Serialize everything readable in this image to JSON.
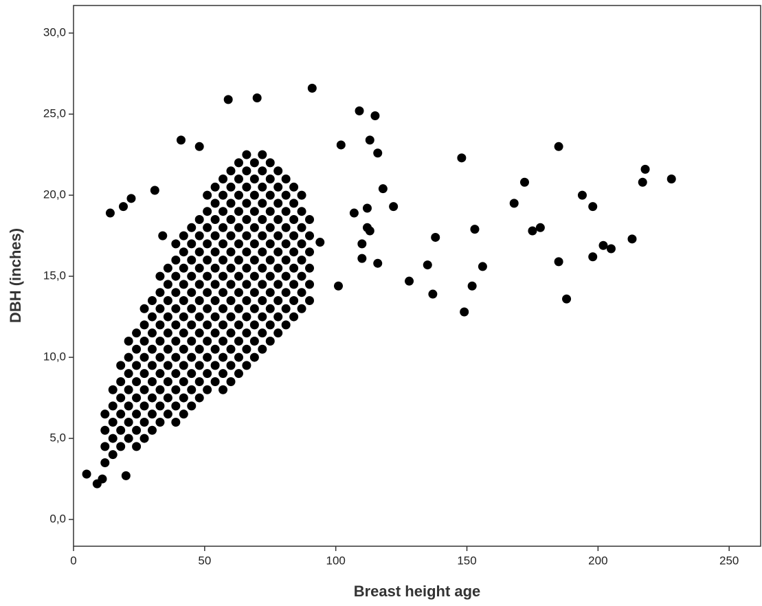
{
  "chart_data": {
    "type": "scatter",
    "xlabel": "Breast height age",
    "ylabel": "DBH (inches)",
    "color": "#000000",
    "xlim": [
      0,
      262
    ],
    "ylim": [
      -1.65,
      31.7
    ],
    "xticks": [
      0,
      50,
      100,
      150,
      200,
      250
    ],
    "yticks": [
      {
        "value": 0,
        "label": "0,0"
      },
      {
        "value": 5,
        "label": "5,0"
      },
      {
        "value": 10,
        "label": "10,0"
      },
      {
        "value": 15,
        "label": "15,0"
      },
      {
        "value": 20,
        "label": "20,0"
      },
      {
        "value": 25,
        "label": "25,0"
      },
      {
        "value": 30,
        "label": "30,0"
      }
    ],
    "x": [
      12,
      12,
      12,
      12,
      15,
      15,
      15,
      15,
      15,
      18,
      18,
      18,
      18,
      18,
      18,
      21,
      21,
      21,
      21,
      21,
      21,
      21,
      24,
      24,
      24,
      24,
      24,
      24,
      24,
      24,
      27,
      27,
      27,
      27,
      27,
      27,
      27,
      27,
      27,
      30,
      30,
      30,
      30,
      30,
      30,
      30,
      30,
      30,
      33,
      33,
      33,
      33,
      33,
      33,
      33,
      33,
      33,
      33,
      36,
      36,
      36,
      36,
      36,
      36,
      36,
      36,
      36,
      36,
      39,
      39,
      39,
      39,
      39,
      39,
      39,
      39,
      39,
      39,
      39,
      39,
      42,
      42,
      42,
      42,
      42,
      42,
      42,
      42,
      42,
      42,
      42,
      42,
      45,
      45,
      45,
      45,
      45,
      45,
      45,
      45,
      45,
      45,
      45,
      45,
      48,
      48,
      48,
      48,
      48,
      48,
      48,
      48,
      48,
      48,
      48,
      48,
      51,
      51,
      51,
      51,
      51,
      51,
      51,
      51,
      51,
      51,
      51,
      51,
      51,
      54,
      54,
      54,
      54,
      54,
      54,
      54,
      54,
      54,
      54,
      54,
      54,
      54,
      57,
      57,
      57,
      57,
      57,
      57,
      57,
      57,
      57,
      57,
      57,
      57,
      57,
      57,
      60,
      60,
      60,
      60,
      60,
      60,
      60,
      60,
      60,
      60,
      60,
      60,
      60,
      60,
      63,
      63,
      63,
      63,
      63,
      63,
      63,
      63,
      63,
      63,
      63,
      63,
      63,
      63,
      66,
      66,
      66,
      66,
      66,
      66,
      66,
      66,
      66,
      66,
      66,
      66,
      66,
      66,
      69,
      69,
      69,
      69,
      69,
      69,
      69,
      69,
      69,
      69,
      69,
      69,
      69,
      72,
      72,
      72,
      72,
      72,
      72,
      72,
      72,
      72,
      72,
      72,
      72,
      72,
      75,
      75,
      75,
      75,
      75,
      75,
      75,
      75,
      75,
      75,
      75,
      75,
      78,
      78,
      78,
      78,
      78,
      78,
      78,
      78,
      78,
      78,
      78,
      81,
      81,
      81,
      81,
      81,
      81,
      81,
      81,
      81,
      81,
      84,
      84,
      84,
      84,
      84,
      84,
      84,
      84,
      84,
      87,
      87,
      87,
      87,
      87,
      87,
      87,
      87,
      90,
      90,
      90,
      90,
      90,
      90,
      5,
      9,
      11,
      20,
      14,
      19,
      22,
      31,
      34,
      41,
      48,
      59,
      70,
      91,
      109,
      115,
      102,
      113,
      116,
      118,
      122,
      112,
      107,
      112,
      110,
      113,
      110,
      116,
      101,
      94,
      128,
      135,
      138,
      137,
      148,
      153,
      149,
      152,
      156,
      168,
      172,
      175,
      178,
      185,
      185,
      188,
      194,
      198,
      198,
      202,
      205,
      213,
      217,
      218,
      228
    ],
    "values": [
      3.5,
      4.5,
      5.5,
      6.5,
      4,
      5,
      6,
      7,
      8,
      4.5,
      5.5,
      6.5,
      7.5,
      8.5,
      9.5,
      5,
      6,
      7,
      8,
      9,
      10,
      11,
      4.5,
      5.5,
      6.5,
      7.5,
      8.5,
      9.5,
      10.5,
      11.5,
      5,
      6,
      7,
      8,
      9,
      10,
      11,
      12,
      13,
      5.5,
      6.5,
      7.5,
      8.5,
      9.5,
      10.5,
      11.5,
      12.5,
      13.5,
      6,
      7,
      8,
      9,
      10,
      11,
      12,
      13,
      14,
      15,
      6.5,
      7.5,
      8.5,
      9.5,
      10.5,
      11.5,
      12.5,
      13.5,
      14.5,
      15.5,
      6,
      7,
      8,
      9,
      10,
      11,
      12,
      13,
      14,
      15,
      16,
      17,
      6.5,
      7.5,
      8.5,
      9.5,
      10.5,
      11.5,
      12.5,
      13.5,
      14.5,
      15.5,
      16.5,
      17.5,
      7,
      8,
      9,
      10,
      11,
      12,
      13,
      14,
      15,
      16,
      17,
      18,
      7.5,
      8.5,
      9.5,
      10.5,
      11.5,
      12.5,
      13.5,
      14.5,
      15.5,
      16.5,
      17.5,
      18.5,
      8,
      9,
      10,
      11,
      12,
      13,
      14,
      15,
      16,
      17,
      18,
      19,
      20,
      8.5,
      9.5,
      10.5,
      11.5,
      12.5,
      13.5,
      14.5,
      15.5,
      16.5,
      17.5,
      18.5,
      19.5,
      20.5,
      8,
      9,
      10,
      11,
      12,
      13,
      14,
      15,
      16,
      17,
      18,
      19,
      20,
      21,
      8.5,
      9.5,
      10.5,
      11.5,
      12.5,
      13.5,
      14.5,
      15.5,
      16.5,
      17.5,
      18.5,
      19.5,
      20.5,
      21.5,
      9,
      10,
      11,
      12,
      13,
      14,
      15,
      16,
      17,
      18,
      19,
      20,
      21,
      22,
      9.5,
      10.5,
      11.5,
      12.5,
      13.5,
      14.5,
      15.5,
      16.5,
      17.5,
      18.5,
      19.5,
      20.5,
      21.5,
      22.5,
      10,
      11,
      12,
      13,
      14,
      15,
      16,
      17,
      18,
      19,
      20,
      21,
      22,
      10.5,
      11.5,
      12.5,
      13.5,
      14.5,
      15.5,
      16.5,
      17.5,
      18.5,
      19.5,
      20.5,
      21.5,
      22.5,
      11,
      12,
      13,
      14,
      15,
      16,
      17,
      18,
      19,
      20,
      21,
      22,
      11.5,
      12.5,
      13.5,
      14.5,
      15.5,
      16.5,
      17.5,
      18.5,
      19.5,
      20.5,
      21.5,
      12,
      13,
      14,
      15,
      16,
      17,
      18,
      19,
      20,
      21,
      12.5,
      13.5,
      14.5,
      15.5,
      16.5,
      17.5,
      18.5,
      19.5,
      20.5,
      13,
      14,
      15,
      16,
      17,
      18,
      19,
      20,
      13.5,
      14.5,
      15.5,
      16.5,
      17.5,
      18.5,
      2.8,
      2.2,
      2.5,
      2.7,
      18.9,
      19.3,
      19.8,
      20.3,
      17.5,
      23.4,
      23,
      25.9,
      26,
      26.6,
      25.2,
      24.9,
      23.1,
      23.4,
      22.6,
      20.4,
      19.3,
      19.2,
      18.9,
      18,
      17,
      17.8,
      16.1,
      15.8,
      14.4,
      17.1,
      14.7,
      15.7,
      17.4,
      13.9,
      22.3,
      17.9,
      12.8,
      14.4,
      15.6,
      19.5,
      20.8,
      17.8,
      18,
      23,
      15.9,
      13.6,
      20,
      19.3,
      16.2,
      16.9,
      16.7,
      17.3,
      20.8,
      21.6,
      21
    ]
  }
}
